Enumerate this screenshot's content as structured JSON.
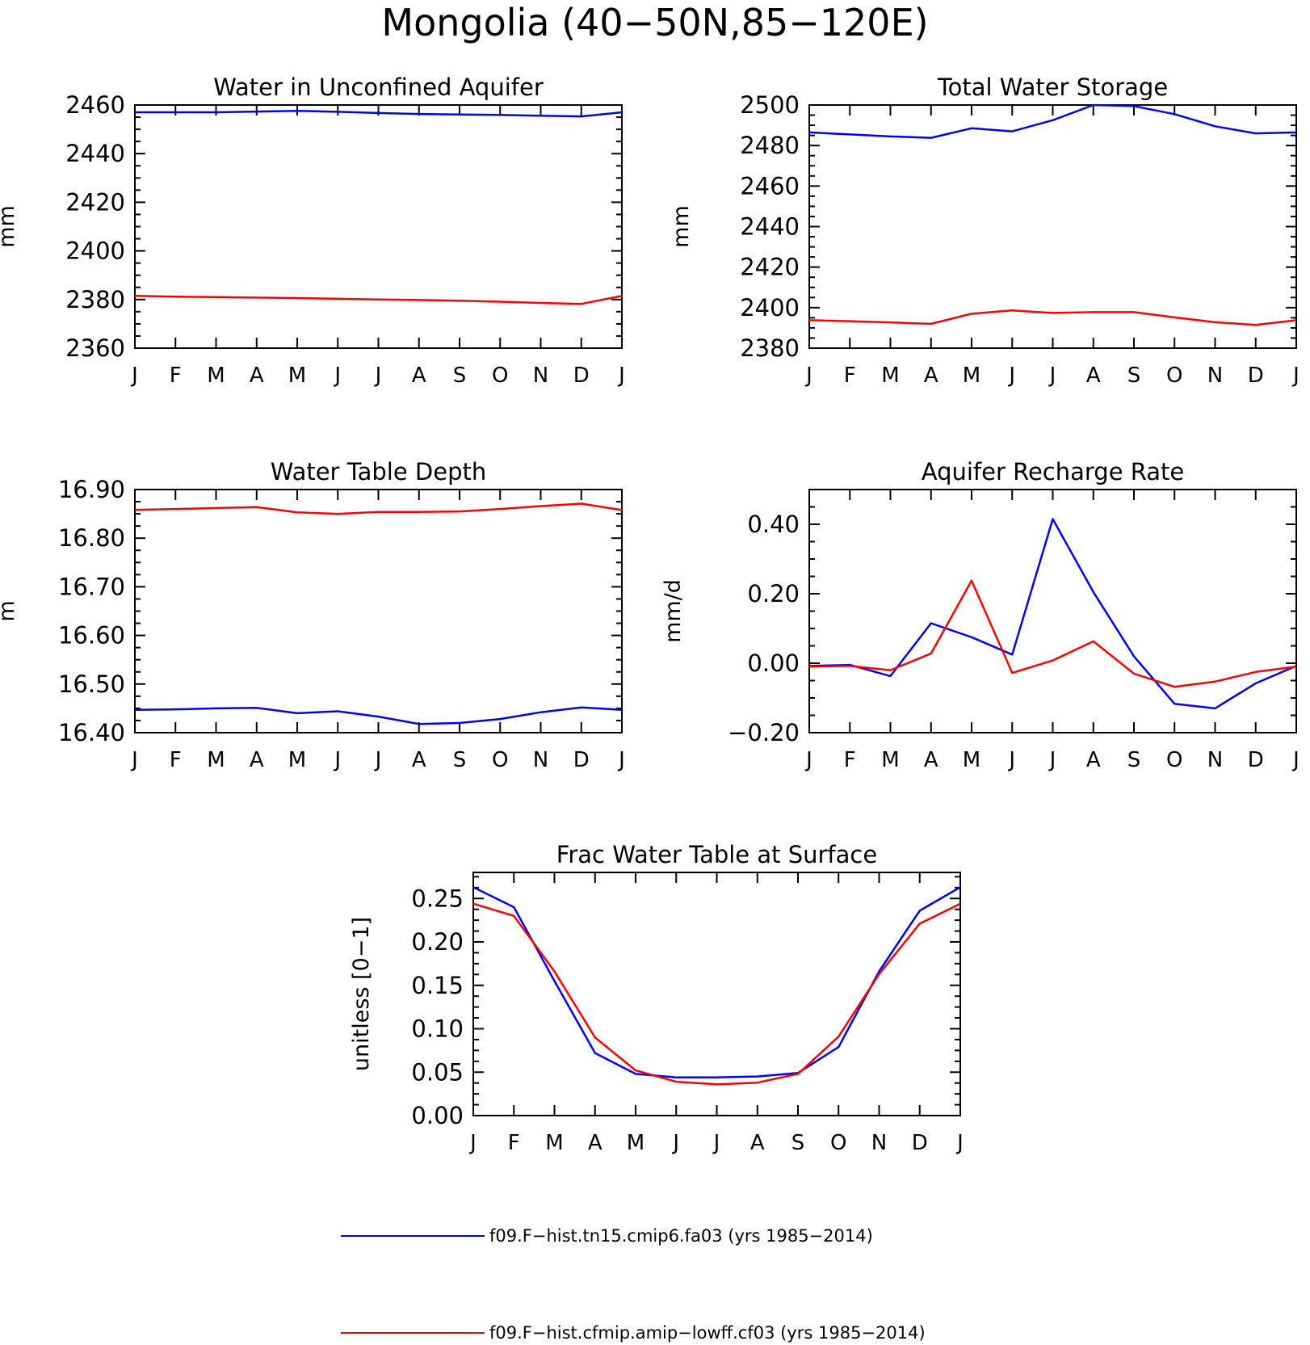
{
  "figure_title": "Mongolia (40−50N,85−120E)",
  "colors": {
    "series_1": "#0000ff",
    "series_2": "#ff0000",
    "axes": "#000000"
  },
  "legend": [
    {
      "label": "f09.F−hist.tn15.cmip6.fa03 (yrs 1985−2014)",
      "color": "#0000ff"
    },
    {
      "label": "f09.F−hist.cfmip.amip−lowff.cf03 (yrs 1985−2014)",
      "color": "#ff0000"
    }
  ],
  "chart_data": [
    {
      "type": "line",
      "title": "Water in Unconfined Aquifer",
      "ylabel": "mm",
      "xlabel": "",
      "categories": [
        "J",
        "F",
        "M",
        "A",
        "M",
        "J",
        "J",
        "A",
        "S",
        "O",
        "N",
        "D",
        "J"
      ],
      "ylim": [
        2360,
        2460
      ],
      "yticks": [
        2360,
        2380,
        2400,
        2420,
        2440,
        2460
      ],
      "ytick_labels": [
        "2360",
        "2380",
        "2400",
        "2420",
        "2440",
        "2460"
      ],
      "series": [
        {
          "values": [
            2457,
            2457,
            2457,
            2457.3,
            2457.6,
            2457.2,
            2456.7,
            2456.3,
            2456.1,
            2455.9,
            2455.6,
            2455.3,
            2457
          ],
          "color": "#0000ff"
        },
        {
          "values": [
            2381.5,
            2381.2,
            2381,
            2380.8,
            2380.6,
            2380.3,
            2380,
            2379.8,
            2379.5,
            2379.1,
            2378.6,
            2378.2,
            2381.5
          ],
          "color": "#ff0000"
        }
      ]
    },
    {
      "type": "line",
      "title": "Total Water Storage",
      "ylabel": "mm",
      "xlabel": "",
      "categories": [
        "J",
        "F",
        "M",
        "A",
        "M",
        "J",
        "J",
        "A",
        "S",
        "O",
        "N",
        "D",
        "J"
      ],
      "ylim": [
        2380,
        2500
      ],
      "yticks": [
        2380,
        2400,
        2420,
        2440,
        2460,
        2480,
        2500
      ],
      "ytick_labels": [
        "2380",
        "2400",
        "2420",
        "2440",
        "2460",
        "2480",
        "2500"
      ],
      "series": [
        {
          "values": [
            2486.5,
            2485.5,
            2484.5,
            2483.8,
            2488.5,
            2487,
            2492.5,
            2500,
            2499.5,
            2495.5,
            2489.5,
            2486,
            2486.5
          ],
          "color": "#0000ff"
        },
        {
          "values": [
            2393.8,
            2393.3,
            2392.7,
            2392,
            2397,
            2398.6,
            2397.4,
            2397.8,
            2397.8,
            2395.2,
            2392.8,
            2391.5,
            2393.8
          ],
          "color": "#ff0000"
        }
      ]
    },
    {
      "type": "line",
      "title": "Water Table Depth",
      "ylabel": "m",
      "xlabel": "",
      "categories": [
        "J",
        "F",
        "M",
        "A",
        "M",
        "J",
        "J",
        "A",
        "S",
        "O",
        "N",
        "D",
        "J"
      ],
      "ylim": [
        16.4,
        16.9
      ],
      "yticks": [
        16.4,
        16.5,
        16.6,
        16.7,
        16.8,
        16.9
      ],
      "ytick_labels": [
        "16.40",
        "16.50",
        "16.60",
        "16.70",
        "16.80",
        "16.90"
      ],
      "series": [
        {
          "values": [
            16.447,
            16.448,
            16.45,
            16.451,
            16.44,
            16.444,
            16.433,
            16.418,
            16.42,
            16.428,
            16.442,
            16.452,
            16.447
          ],
          "color": "#0000ff"
        },
        {
          "values": [
            16.858,
            16.86,
            16.862,
            16.864,
            16.853,
            16.85,
            16.854,
            16.854,
            16.855,
            16.86,
            16.866,
            16.871,
            16.858
          ],
          "color": "#ff0000"
        }
      ]
    },
    {
      "type": "line",
      "title": "Aquifer Recharge Rate",
      "ylabel": "mm/d",
      "xlabel": "",
      "categories": [
        "J",
        "F",
        "M",
        "A",
        "M",
        "J",
        "J",
        "A",
        "S",
        "O",
        "N",
        "D",
        "J"
      ],
      "ylim": [
        -0.2,
        0.5
      ],
      "yticks": [
        -0.2,
        0.0,
        0.2,
        0.4
      ],
      "ytick_labels": [
        "−0.20",
        "0.00",
        "0.20",
        "0.40"
      ],
      "series": [
        {
          "values": [
            -0.008,
            -0.005,
            -0.037,
            0.115,
            0.075,
            0.025,
            0.415,
            0.205,
            0.02,
            -0.117,
            -0.13,
            -0.058,
            -0.008
          ],
          "color": "#0000ff"
        },
        {
          "values": [
            -0.01,
            -0.008,
            -0.02,
            0.028,
            0.238,
            -0.028,
            0.008,
            0.063,
            -0.03,
            -0.068,
            -0.053,
            -0.025,
            -0.01
          ],
          "color": "#ff0000"
        }
      ]
    },
    {
      "type": "line",
      "title": "Frac Water Table at Surface",
      "ylabel": "unitless [0−1]",
      "xlabel": "",
      "categories": [
        "J",
        "F",
        "M",
        "A",
        "M",
        "J",
        "J",
        "A",
        "S",
        "O",
        "N",
        "D",
        "J"
      ],
      "ylim": [
        0.0,
        0.28
      ],
      "yticks": [
        0.0,
        0.05,
        0.1,
        0.15,
        0.2,
        0.25
      ],
      "ytick_labels": [
        "0.00",
        "0.05",
        "0.10",
        "0.15",
        "0.20",
        "0.25"
      ],
      "series": [
        {
          "values": [
            0.263,
            0.24,
            0.155,
            0.072,
            0.048,
            0.044,
            0.044,
            0.045,
            0.049,
            0.079,
            0.166,
            0.236,
            0.263
          ],
          "color": "#0000ff"
        },
        {
          "values": [
            0.244,
            0.23,
            0.166,
            0.09,
            0.052,
            0.039,
            0.036,
            0.038,
            0.048,
            0.091,
            0.163,
            0.221,
            0.244
          ],
          "color": "#ff0000"
        }
      ]
    }
  ]
}
